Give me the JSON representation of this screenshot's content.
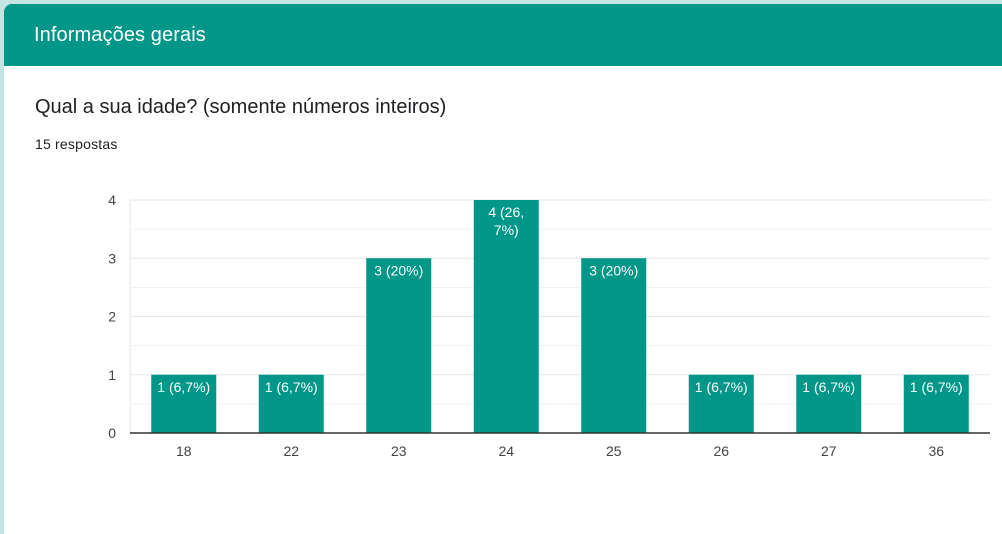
{
  "section": {
    "title": "Informações gerais"
  },
  "question": {
    "title": "Qual a sua idade? (somente números inteiros)",
    "responses": "15 respostas"
  },
  "colors": {
    "accent": "#009688",
    "bar": "#009688",
    "grid": "#e6e6e6",
    "axis": "#333333",
    "background": "#ffffff"
  },
  "chart_data": {
    "type": "bar",
    "categories": [
      "18",
      "22",
      "23",
      "24",
      "25",
      "26",
      "27",
      "36"
    ],
    "values": [
      1,
      1,
      3,
      4,
      3,
      1,
      1,
      1
    ],
    "data_labels": [
      [
        "1 (6,7%)"
      ],
      [
        "1 (6,7%)"
      ],
      [
        "3 (20%)"
      ],
      [
        "4 (26,",
        "7%)"
      ],
      [
        "3 (20%)"
      ],
      [
        "1 (6,7%)"
      ],
      [
        "1 (6,7%)"
      ],
      [
        "1 (6,7%)"
      ]
    ],
    "ylim": [
      0,
      4
    ],
    "yticks": [
      0,
      1,
      2,
      3,
      4
    ],
    "grid": true,
    "legend": "none"
  }
}
